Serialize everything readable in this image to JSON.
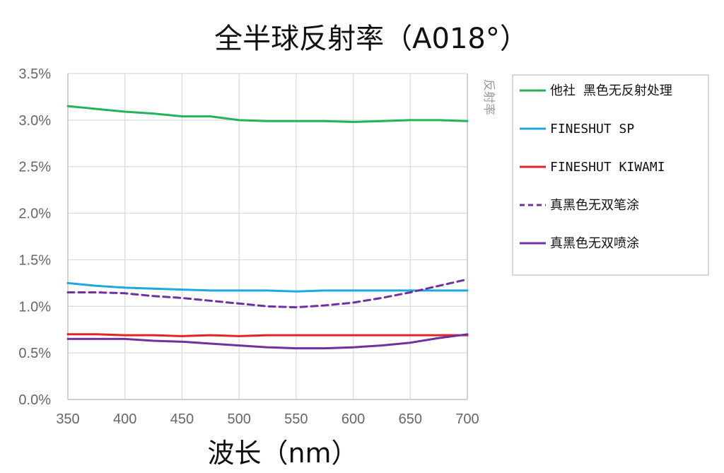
{
  "chart_data": {
    "type": "line",
    "title": "全半球反射率（A018°）",
    "xlabel": "波长（nm）",
    "ylabel": "反射率",
    "xlim": [
      350,
      700
    ],
    "ylim": [
      0,
      3.5
    ],
    "x_ticks": [
      "350",
      "400",
      "450",
      "500",
      "550",
      "600",
      "650",
      "700"
    ],
    "y_ticks": [
      "0.0%",
      "0.5%",
      "1.0%",
      "1.5%",
      "2.0%",
      "2.5%",
      "3.0%",
      "3.5%"
    ],
    "grid": true,
    "legend_position": "right",
    "x": [
      350,
      375,
      400,
      425,
      450,
      475,
      500,
      525,
      550,
      575,
      600,
      625,
      650,
      675,
      700
    ],
    "series": [
      {
        "name": "他社 黑色无反射处理",
        "color": "#22b35b",
        "dash": "solid",
        "values": [
          3.15,
          3.12,
          3.09,
          3.07,
          3.04,
          3.04,
          3.0,
          2.99,
          2.99,
          2.99,
          2.98,
          2.99,
          3.0,
          3.0,
          2.99
        ]
      },
      {
        "name": "FINESHUT SP",
        "color": "#1da8df",
        "dash": "solid",
        "values": [
          1.25,
          1.22,
          1.2,
          1.19,
          1.18,
          1.17,
          1.17,
          1.17,
          1.16,
          1.17,
          1.17,
          1.17,
          1.17,
          1.17,
          1.17
        ]
      },
      {
        "name": "FINESHUT KIWAMI",
        "color": "#e02525",
        "dash": "solid",
        "values": [
          0.7,
          0.7,
          0.69,
          0.69,
          0.68,
          0.69,
          0.68,
          0.69,
          0.69,
          0.69,
          0.69,
          0.69,
          0.69,
          0.69,
          0.69
        ]
      },
      {
        "name": "真黑色无双笔涂",
        "color": "#7030a0",
        "dash": "dashed",
        "values": [
          1.15,
          1.15,
          1.14,
          1.11,
          1.09,
          1.06,
          1.03,
          1.0,
          0.99,
          1.01,
          1.04,
          1.09,
          1.15,
          1.22,
          1.29
        ]
      },
      {
        "name": "真黑色无双喷涂",
        "color": "#7030a0",
        "dash": "solid",
        "values": [
          0.65,
          0.65,
          0.65,
          0.63,
          0.62,
          0.6,
          0.58,
          0.56,
          0.55,
          0.55,
          0.56,
          0.58,
          0.61,
          0.66,
          0.7
        ]
      }
    ]
  }
}
